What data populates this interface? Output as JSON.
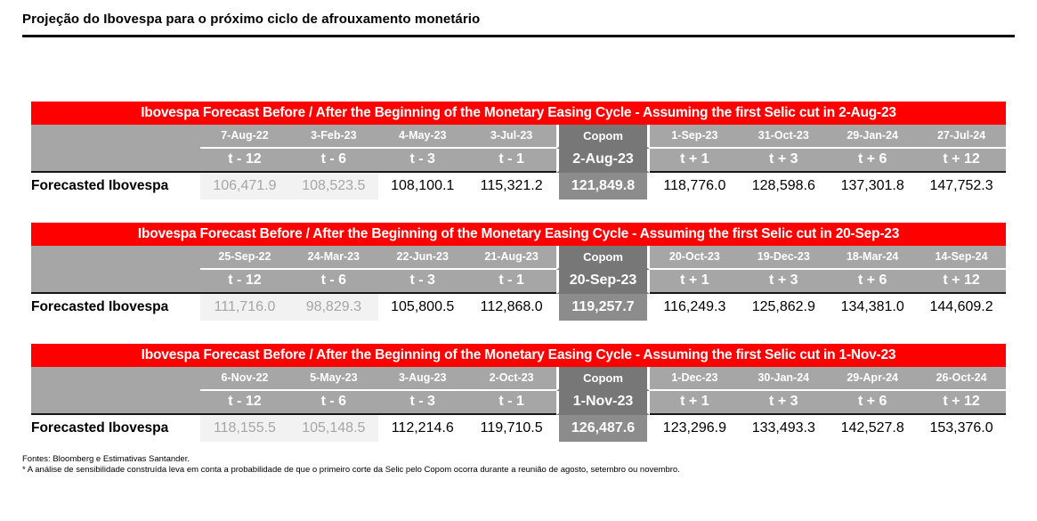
{
  "page_title": "Projeção do Ibovespa para o próximo ciclo de afrouxamento monetário",
  "row_label": "Forecasted Ibovespa",
  "colors": {
    "header_red": "#FE0000",
    "band_gray": "#A6A6A6",
    "copom_band_gray": "#777777",
    "copom_value_gray": "#8C8C8C",
    "muted_cell_bg": "#F2F2F2",
    "muted_cell_text": "#A6A6A6"
  },
  "tables": [
    {
      "title": "Ibovespa Forecast Before / After the Beginning of the Monetary Easing Cycle - Assuming the first Selic cut in 2-Aug-23",
      "columns": [
        {
          "date": "7-Aug-22",
          "t": "t - 12",
          "value": "106,471.9",
          "style": "muted"
        },
        {
          "date": "3-Feb-23",
          "t": "t - 6",
          "value": "108,523.5",
          "style": "muted"
        },
        {
          "date": "4-May-23",
          "t": "t - 3",
          "value": "108,100.1",
          "style": "normal"
        },
        {
          "date": "3-Jul-23",
          "t": "t - 1",
          "value": "115,321.2",
          "style": "normal"
        },
        {
          "date": "Copom",
          "t": "2-Aug-23",
          "value": "121,849.8",
          "style": "copom"
        },
        {
          "date": "1-Sep-23",
          "t": "t + 1",
          "value": "118,776.0",
          "style": "normal"
        },
        {
          "date": "31-Oct-23",
          "t": "t + 3",
          "value": "128,598.6",
          "style": "normal"
        },
        {
          "date": "29-Jan-24",
          "t": "t + 6",
          "value": "137,301.8",
          "style": "normal"
        },
        {
          "date": "27-Jul-24",
          "t": "t + 12",
          "value": "147,752.3",
          "style": "normal"
        }
      ]
    },
    {
      "title": "Ibovespa Forecast Before / After the Beginning of the Monetary Easing Cycle - Assuming the first Selic cut in 20-Sep-23",
      "columns": [
        {
          "date": "25-Sep-22",
          "t": "t - 12",
          "value": "111,716.0",
          "style": "muted"
        },
        {
          "date": "24-Mar-23",
          "t": "t - 6",
          "value": "98,829.3",
          "style": "muted"
        },
        {
          "date": "22-Jun-23",
          "t": "t - 3",
          "value": "105,800.5",
          "style": "normal"
        },
        {
          "date": "21-Aug-23",
          "t": "t - 1",
          "value": "112,868.0",
          "style": "normal"
        },
        {
          "date": "Copom",
          "t": "20-Sep-23",
          "value": "119,257.7",
          "style": "copom"
        },
        {
          "date": "20-Oct-23",
          "t": "t + 1",
          "value": "116,249.3",
          "style": "normal"
        },
        {
          "date": "19-Dec-23",
          "t": "t + 3",
          "value": "125,862.9",
          "style": "normal"
        },
        {
          "date": "18-Mar-24",
          "t": "t + 6",
          "value": "134,381.0",
          "style": "normal"
        },
        {
          "date": "14-Sep-24",
          "t": "t + 12",
          "value": "144,609.2",
          "style": "normal"
        }
      ]
    },
    {
      "title": "Ibovespa Forecast Before / After the Beginning of the Monetary Easing Cycle - Assuming the first Selic cut in 1-Nov-23",
      "columns": [
        {
          "date": "6-Nov-22",
          "t": "t - 12",
          "value": "118,155.5",
          "style": "muted"
        },
        {
          "date": "5-May-23",
          "t": "t - 6",
          "value": "105,148.5",
          "style": "muted"
        },
        {
          "date": "3-Aug-23",
          "t": "t - 3",
          "value": "112,214.6",
          "style": "normal"
        },
        {
          "date": "2-Oct-23",
          "t": "t - 1",
          "value": "119,710.5",
          "style": "normal"
        },
        {
          "date": "Copom",
          "t": "1-Nov-23",
          "value": "126,487.6",
          "style": "copom"
        },
        {
          "date": "1-Dec-23",
          "t": "t + 1",
          "value": "123,296.9",
          "style": "normal"
        },
        {
          "date": "30-Jan-24",
          "t": "t + 3",
          "value": "133,493.3",
          "style": "normal"
        },
        {
          "date": "29-Apr-24",
          "t": "t + 6",
          "value": "142,527.8",
          "style": "normal"
        },
        {
          "date": "26-Oct-24",
          "t": "t + 12",
          "value": "153,376.0",
          "style": "normal"
        }
      ]
    }
  ],
  "footnotes": [
    "Fontes: Bloomberg e Estimativas Santander.",
    "* A análise de sensibilidade construída leva em conta a probabilidade de que o primeiro corte da Selic pelo Copom ocorra durante a reunião de agosto, setembro ou novembro."
  ]
}
